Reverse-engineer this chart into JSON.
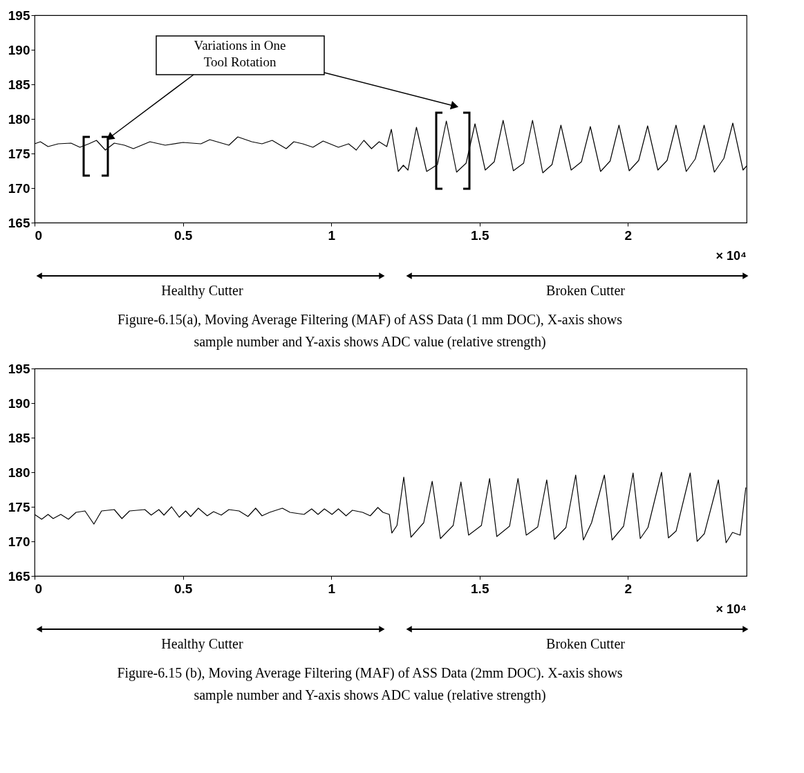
{
  "chart_data": [
    {
      "type": "line",
      "xlim": [
        0,
        2.4
      ],
      "ylim": [
        165,
        195
      ],
      "xticks": [
        0,
        0.5,
        1,
        1.5,
        2
      ],
      "yticks": [
        165,
        170,
        175,
        180,
        185,
        190,
        195
      ],
      "grid": false,
      "series": [
        {
          "color": "#000000",
          "x": [
            0,
            0.0197,
            0.0455,
            0.0798,
            0.1228,
            0.1528,
            0.1828,
            0.2086,
            0.2386,
            0.2687,
            0.303,
            0.3331,
            0.3889,
            0.4404,
            0.5005,
            0.5606,
            0.5906,
            0.655,
            0.685,
            0.7322,
            0.7666,
            0.8009,
            0.8481,
            0.8738,
            0.9039,
            0.9382,
            0.9726,
            1.0241,
            1.0584,
            1.0842,
            1.1099,
            1.1357,
            1.1614,
            1.1872,
            1.2026,
            1.2258,
            1.243,
            1.2586,
            1.2871,
            1.3216,
            1.3579,
            1.3879,
            1.4224,
            1.4545,
            1.4845,
            1.519,
            1.5493,
            1.5793,
            1.6138,
            1.6484,
            1.6784,
            1.7129,
            1.7441,
            1.7741,
            1.8086,
            1.8432,
            1.8732,
            1.9077,
            1.9398,
            1.9698,
            2.0043,
            2.0363,
            2.0663,
            2.1008,
            2.132,
            2.162,
            2.1965,
            2.2268,
            2.2568,
            2.2913,
            2.3234,
            2.3534,
            2.3879,
            2.4
          ],
          "values": [
            176.4,
            176.7,
            176.0,
            176.4,
            176.5,
            175.9,
            176.4,
            176.9,
            175.5,
            176.5,
            176.2,
            175.7,
            176.7,
            176.2,
            176.6,
            176.4,
            177.0,
            176.2,
            177.4,
            176.7,
            176.4,
            176.9,
            175.7,
            176.7,
            176.4,
            175.9,
            176.8,
            175.9,
            176.4,
            175.5,
            176.9,
            175.7,
            176.7,
            176.0,
            178.5,
            172.4,
            173.3,
            172.6,
            178.8,
            172.4,
            173.4,
            179.7,
            172.3,
            173.6,
            179.3,
            172.6,
            173.8,
            179.8,
            172.5,
            173.6,
            179.8,
            172.2,
            173.4,
            179.1,
            172.6,
            173.8,
            178.9,
            172.4,
            173.9,
            179.1,
            172.5,
            174.0,
            179.0,
            172.6,
            174.0,
            179.1,
            172.4,
            174.2,
            179.1,
            172.3,
            174.3,
            179.4,
            172.6,
            173.2
          ]
        }
      ],
      "annotations": [
        "Variations in One Tool Rotation",
        "× 10⁴",
        "Healthy Cutter",
        "Broken Cutter",
        "Figure-6.15(a), Moving Average Filtering (MAF) of ASS Data (1 mm DOC), X-axis shows sample number and Y-axis shows ADC value (relative strength)"
      ]
    },
    {
      "type": "line",
      "xlim": [
        0,
        2.4
      ],
      "ylim": [
        165,
        195
      ],
      "xticks": [
        0,
        0.5,
        1,
        1.5,
        2
      ],
      "yticks": [
        165,
        170,
        175,
        180,
        185,
        190,
        195
      ],
      "grid": false,
      "series": [
        {
          "color": "#000000",
          "x": [
            0,
            0.024,
            0.0455,
            0.0627,
            0.0884,
            0.1142,
            0.14,
            0.17,
            0.2,
            0.2258,
            0.2687,
            0.2944,
            0.3202,
            0.3717,
            0.3931,
            0.4189,
            0.4361,
            0.4619,
            0.4876,
            0.5091,
            0.5262,
            0.552,
            0.582,
            0.6035,
            0.6292,
            0.655,
            0.6893,
            0.7193,
            0.7451,
            0.7666,
            0.7923,
            0.8352,
            0.861,
            0.9082,
            0.9339,
            0.9554,
            0.9769,
            1.0026,
            1.0241,
            1.0499,
            1.0713,
            1.1057,
            1.1314,
            1.1571,
            1.1743,
            1.1957,
            1.2043,
            1.2215,
            1.2444,
            1.2686,
            1.3117,
            1.3402,
            1.3679,
            1.411,
            1.437,
            1.4629,
            1.506,
            1.5337,
            1.5579,
            1.601,
            1.6295,
            1.6572,
            1.696,
            1.7263,
            1.7522,
            1.791,
            1.8239,
            1.8498,
            1.8774,
            1.9206,
            1.9465,
            1.9853,
            2.0173,
            2.0415,
            2.0674,
            2.1132,
            2.1365,
            2.1624,
            2.2099,
            2.2332,
            2.2574,
            2.3049,
            2.3308,
            2.3524,
            2.3783,
            2.3973
          ],
          "values": [
            173.9,
            173.2,
            173.9,
            173.3,
            173.9,
            173.2,
            174.2,
            174.4,
            172.5,
            174.4,
            174.6,
            173.3,
            174.4,
            174.6,
            173.8,
            174.6,
            173.8,
            175.0,
            173.5,
            174.4,
            173.6,
            174.8,
            173.7,
            174.3,
            173.8,
            174.6,
            174.4,
            173.6,
            174.8,
            173.7,
            174.2,
            174.8,
            174.2,
            173.9,
            174.7,
            173.9,
            174.7,
            173.9,
            174.7,
            173.7,
            174.5,
            174.2,
            173.7,
            174.9,
            174.2,
            173.9,
            171.2,
            172.3,
            179.3,
            170.6,
            172.7,
            178.7,
            170.4,
            172.3,
            178.6,
            170.9,
            172.3,
            179.1,
            170.7,
            172.2,
            179.1,
            170.9,
            172.1,
            178.9,
            170.3,
            172.0,
            179.6,
            170.2,
            172.7,
            179.6,
            170.2,
            172.2,
            179.9,
            170.4,
            172.0,
            180.0,
            170.5,
            171.5,
            179.9,
            170.0,
            171.1,
            178.9,
            169.8,
            171.3,
            170.9,
            177.8
          ]
        }
      ],
      "annotations": [
        "× 10⁴",
        "Healthy Cutter",
        "Broken Cutter",
        "Figure-6.15 (b), Moving Average Filtering (MAF) of ASS Data (2mm DOC). X-axis shows sample number and Y-axis shows ADC value (relative strength)"
      ]
    }
  ]
}
